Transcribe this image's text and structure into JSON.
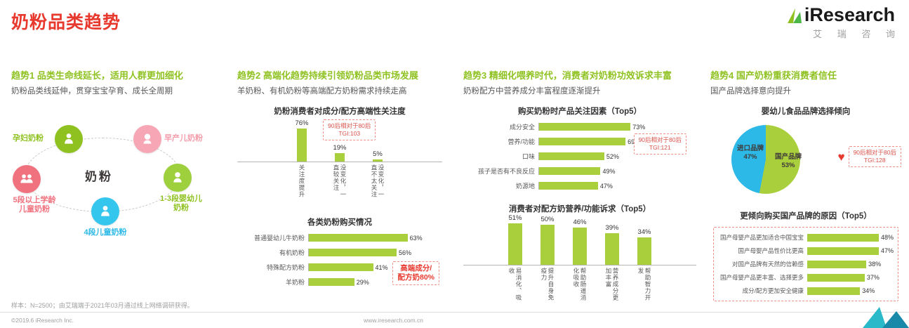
{
  "header": {
    "title": "奶粉品类趋势",
    "logo": {
      "name": "iResearch",
      "cn": "艾 瑞 咨 询"
    }
  },
  "trend1": {
    "heading": "趋势1 品类生命线延长，适用人群更加细化",
    "subheading": "奶粉品类线延伸，贯穿宝宝孕育、成长全周期",
    "center_label": "奶粉",
    "nodes": [
      {
        "label": "孕妇奶粉",
        "color": "#8fc221"
      },
      {
        "label": "早产儿奶粉",
        "color": "#f59cab"
      },
      {
        "label": "1-3段婴幼儿奶粉",
        "color": "#8fc221"
      },
      {
        "label": "4段儿童奶粉",
        "color": "#2cb9e8"
      },
      {
        "label": "5段以上学龄儿童奶粉",
        "color": "#f0727f"
      }
    ]
  },
  "trend2": {
    "heading": "趋势2 高端化趋势持续引领奶粉品类市场发展",
    "subheading": "羊奶粉、有机奶粉等高端配方奶粉需求持续走高",
    "anno1": {
      "line1": "90后相对于80后",
      "line2": "TGI:103"
    },
    "anno2": {
      "line1": "高端成分/",
      "line2": "配方奶80%"
    }
  },
  "trend3": {
    "heading": "趋势3 精细化喂养时代，消费者对奶粉功效诉求丰富",
    "subheading": "奶粉配方中营养成分丰富程度逐渐提升",
    "anno1": {
      "line1": "90后相对于80后",
      "line2": "TGI:121"
    }
  },
  "trend4": {
    "heading": "趋势4 国产奶粉重获消费者信任",
    "subheading": "国产品牌选择意向提升",
    "anno1": {
      "line1": "90后相对于80后",
      "line2": "TGI:128"
    }
  },
  "chart_data": [
    {
      "id": "premium-attention",
      "type": "bar",
      "title": "奶粉消费者对成分/配方高端性关注度",
      "categories": [
        "关注度提升",
        "没变化，一直较关注",
        "没变化，一直不太关注"
      ],
      "values": [
        76,
        19,
        5
      ],
      "unit": "%",
      "ylim": [
        0,
        100
      ],
      "annotation": "90后相对于80后 TGI:103"
    },
    {
      "id": "purchase-by-type",
      "type": "hbar",
      "title": "各类奶粉购买情况",
      "categories": [
        "普通婴幼儿牛奶粉",
        "有机奶粉",
        "特殊配方奶粉",
        "羊奶粉"
      ],
      "values": [
        63,
        56,
        41,
        29
      ],
      "unit": "%",
      "annotation": "高端成分/配方奶80%"
    },
    {
      "id": "purchase-factors",
      "type": "hbar",
      "title": "购买奶粉时产品关注因素（Top5）",
      "categories": [
        "成分安全",
        "营养/功能",
        "口味",
        "孩子是否有不良反应",
        "奶源地"
      ],
      "values": [
        73,
        69,
        52,
        49,
        47
      ],
      "unit": "%",
      "annotation": "90后相对于80后 TGI:121"
    },
    {
      "id": "nutrition-demands",
      "type": "bar",
      "title": "消费者对配方奶营养/功能诉求（Top5）",
      "categories": [
        "易消化、吸收",
        "提升自身免疫力",
        "帮助肠道消化吸收",
        "营养成分更加丰富",
        "帮助智力开发"
      ],
      "values": [
        51,
        50,
        46,
        39,
        34
      ],
      "unit": "%"
    },
    {
      "id": "brand-preference",
      "type": "pie",
      "title": "婴幼儿食品品牌选择倾向",
      "slices": [
        {
          "label": "进口品牌",
          "value": 47,
          "color": "#2cb9e8"
        },
        {
          "label": "国产品牌",
          "value": 53,
          "color": "#aacf3c"
        }
      ],
      "annotation": "90后相对于80后 TGI:128"
    },
    {
      "id": "domestic-reasons",
      "type": "hbar",
      "title": "更倾向购买国产品牌的原因（Top5）",
      "categories": [
        "国产母婴产品更加适合中国宝宝",
        "国产母婴产品性价比更高",
        "对国产品牌有天然的信赖感",
        "国产母婴产品更丰富、选择更多",
        "成分/配方更加安全健康"
      ],
      "values": [
        48,
        47,
        38,
        37,
        34
      ],
      "unit": "%"
    }
  ],
  "colors": {
    "accent_red": "#e8392f",
    "trend_green": "#8fc221",
    "bar_green": "#aacf3c",
    "pie_blue": "#2cb9e8"
  },
  "footnote": "样本：N=2500；由艾瑞端于2021年03月通过线上网络调研获得。",
  "footer": {
    "copyright": "©2019.6 iResearch Inc.",
    "website": "www.iresearch.com.cn"
  }
}
